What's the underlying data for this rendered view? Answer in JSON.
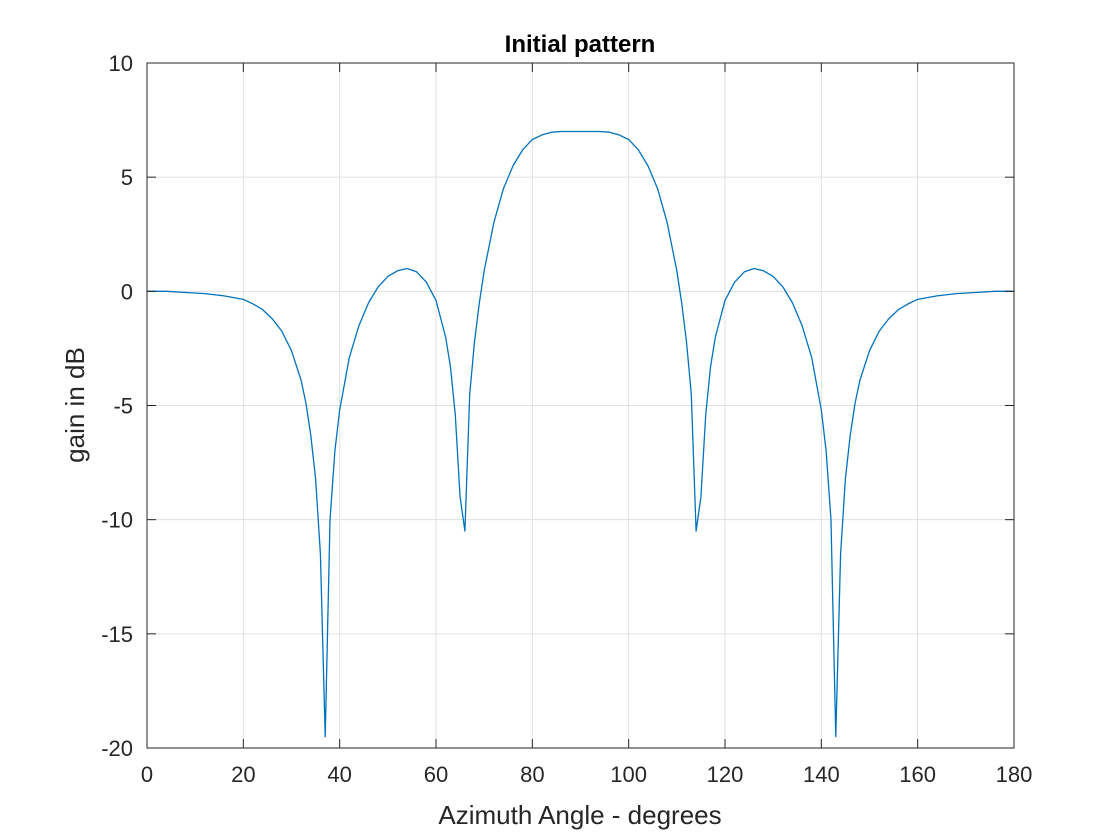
{
  "chart_data": {
    "type": "line",
    "title": "Initial pattern",
    "xlabel": "Azimuth Angle - degrees",
    "ylabel": "gain in dB",
    "xlim": [
      0,
      180
    ],
    "ylim": [
      -20,
      10
    ],
    "xticks": [
      0,
      20,
      40,
      60,
      80,
      100,
      120,
      140,
      160,
      180
    ],
    "yticks": [
      -20,
      -15,
      -10,
      -5,
      0,
      5,
      10
    ],
    "grid": true,
    "line_color": "#0072BD",
    "series": [
      {
        "x": [
          0,
          4,
          8,
          12,
          16,
          20,
          22,
          24,
          26,
          28,
          30,
          32,
          33,
          34,
          35,
          36,
          37,
          38,
          39,
          40,
          42,
          44,
          46,
          48,
          50,
          52,
          54,
          56,
          58,
          60,
          62,
          63,
          64,
          65,
          66,
          67,
          68,
          69,
          70,
          72,
          74,
          76,
          78,
          80,
          82,
          84,
          86,
          88,
          90,
          92,
          94,
          96,
          98,
          100,
          102,
          104,
          106,
          108,
          110,
          111,
          112,
          113,
          114,
          115,
          116,
          117,
          118,
          120,
          122,
          124,
          126,
          128,
          130,
          132,
          134,
          136,
          138,
          140,
          141,
          142,
          143,
          144,
          145,
          146,
          147,
          148,
          150,
          152,
          154,
          156,
          158,
          160,
          164,
          168,
          172,
          176,
          180
        ],
        "y": [
          0,
          0,
          -0.05,
          -0.1,
          -0.2,
          -0.35,
          -0.55,
          -0.8,
          -1.2,
          -1.75,
          -2.6,
          -3.9,
          -4.9,
          -6.3,
          -8.2,
          -11.5,
          -19.5,
          -10.0,
          -7.0,
          -5.2,
          -2.9,
          -1.5,
          -0.5,
          0.2,
          0.65,
          0.9,
          1.0,
          0.85,
          0.4,
          -0.4,
          -2.0,
          -3.3,
          -5.4,
          -9.0,
          -10.5,
          -4.5,
          -2.2,
          -0.5,
          0.9,
          3.0,
          4.5,
          5.5,
          6.2,
          6.65,
          6.85,
          6.97,
          7.0,
          7.0,
          7.0,
          7.0,
          7.0,
          6.97,
          6.85,
          6.65,
          6.2,
          5.5,
          4.5,
          3.0,
          0.9,
          -0.5,
          -2.2,
          -4.5,
          -10.5,
          -9.0,
          -5.4,
          -3.3,
          -2.0,
          -0.4,
          0.4,
          0.85,
          1.0,
          0.9,
          0.65,
          0.2,
          -0.5,
          -1.5,
          -2.9,
          -5.2,
          -7.0,
          -10.0,
          -19.5,
          -11.5,
          -8.2,
          -6.3,
          -4.9,
          -3.9,
          -2.6,
          -1.75,
          -1.2,
          -0.8,
          -0.55,
          -0.35,
          -0.2,
          -0.1,
          -0.05,
          0,
          0
        ]
      }
    ]
  }
}
